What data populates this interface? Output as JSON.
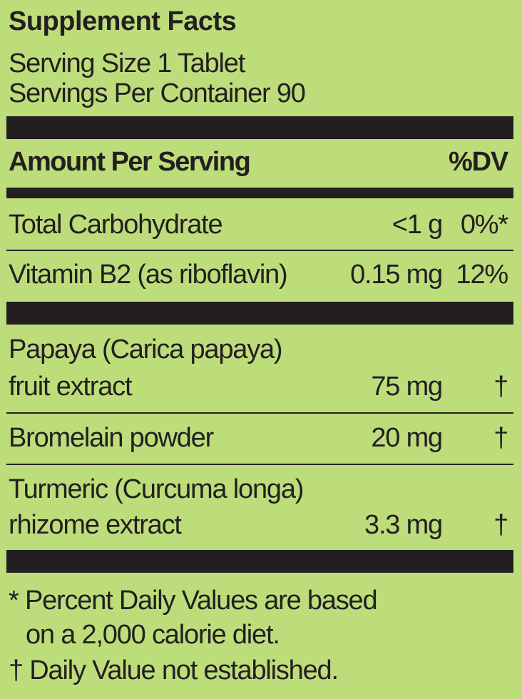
{
  "label": {
    "title": "Supplement Facts",
    "serving_size": "Serving Size 1 Tablet",
    "servings_per_container": "Servings Per Container 90",
    "header_amount": "Amount Per Serving",
    "header_dv": "%DV",
    "nutrients": [
      {
        "name": "Total Carbohydrate",
        "amount": "<1 g",
        "dv": "0%*"
      },
      {
        "name": "Vitamin B2 (as riboflavin)",
        "amount": "0.15 mg",
        "dv": "12%"
      }
    ],
    "ingredients": [
      {
        "name_line1": "Papaya (Carica papaya)",
        "name_line2": "fruit extract",
        "amount": "75 mg",
        "dv": "†"
      },
      {
        "name_line1": "Bromelain powder",
        "amount": "20 mg",
        "dv": "†"
      },
      {
        "name_line1": "Turmeric (Curcuma longa)",
        "name_line2": "rhizome extract",
        "amount": "3.3 mg",
        "dv": "†"
      }
    ],
    "footnote1_line1": "* Percent Daily Values are based",
    "footnote1_line2": "on a 2,000 calorie diet.",
    "footnote2": "† Daily Value not established."
  },
  "colors": {
    "background": "#bddd7b",
    "ink": "#231f20"
  }
}
